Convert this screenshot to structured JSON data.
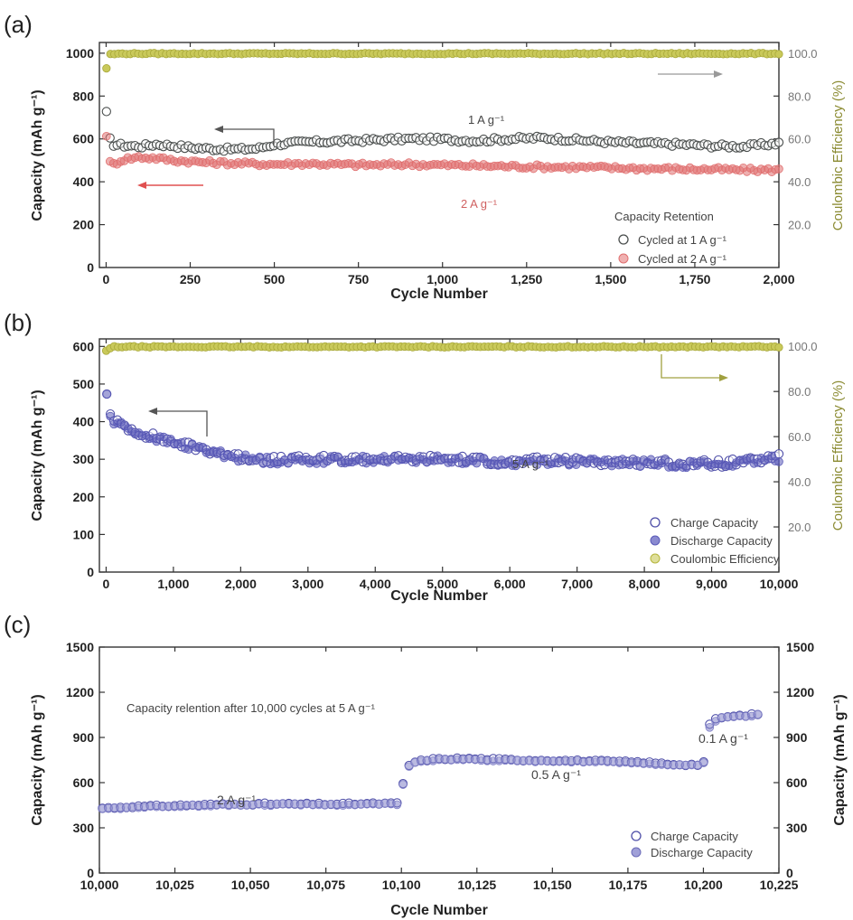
{
  "chart_data": [
    {
      "panel": "(a)",
      "type": "scatter",
      "xlabel": "Cycle Number",
      "ylabel": "Capacity (mAh g⁻¹)",
      "y2label": "Coulombic Efficiency (%)",
      "xlim": [
        -20,
        2000
      ],
      "ylim": [
        0,
        1050
      ],
      "y2lim": [
        0,
        105
      ],
      "x_ticks": [
        "0",
        "250",
        "500",
        "750",
        "1,000",
        "1,250",
        "1,500",
        "1,750",
        "2,000"
      ],
      "y_ticks": [
        "0",
        "200",
        "400",
        "600",
        "800",
        "1000"
      ],
      "y2_ticks": [
        "20.0",
        "40.0",
        "60.0",
        "80.0",
        "100.0"
      ],
      "legend": {
        "title": "Capacity Retention",
        "position": "lower-right"
      },
      "annotations": [
        {
          "text": "1 A g⁻¹",
          "near_series": "Cycled at 1 A g⁻¹"
        },
        {
          "text": "2 A g⁻¹",
          "near_series": "Cycled at 2 A g⁻¹"
        }
      ],
      "series": [
        {
          "name": "Cycled at 1 A g⁻¹",
          "color": "#4a4e4d",
          "axis": "left",
          "x": [
            1,
            5,
            10,
            20,
            50,
            100,
            150,
            200,
            250,
            300,
            350,
            400,
            450,
            500,
            600,
            700,
            800,
            900,
            1000,
            1100,
            1200,
            1300,
            1400,
            1500,
            1600,
            1700,
            1800,
            1900,
            2000
          ],
          "values": [
            720,
            640,
            600,
            575,
            570,
            565,
            575,
            568,
            560,
            555,
            552,
            552,
            555,
            575,
            585,
            590,
            595,
            600,
            598,
            592,
            600,
            605,
            595,
            585,
            580,
            575,
            568,
            565,
            580
          ]
        },
        {
          "name": "Cycled at 2 A g⁻¹",
          "color": "#e07070",
          "axis": "left",
          "x": [
            1,
            5,
            10,
            20,
            50,
            100,
            150,
            200,
            250,
            300,
            350,
            400,
            500,
            600,
            700,
            800,
            900,
            1000,
            1100,
            1200,
            1300,
            1400,
            1500,
            1600,
            1700,
            1800,
            1900,
            2000
          ],
          "values": [
            620,
            530,
            490,
            480,
            505,
            515,
            510,
            500,
            495,
            490,
            488,
            485,
            482,
            485,
            480,
            478,
            482,
            478,
            475,
            472,
            470,
            468,
            465,
            462,
            460,
            458,
            455,
            455
          ]
        },
        {
          "name": "Coulombic Efficiency",
          "color": "#b5b53c",
          "axis": "right",
          "x": [
            1,
            10,
            50,
            500,
            1000,
            1500,
            2000
          ],
          "values": [
            93,
            99.5,
            99.8,
            99.8,
            99.8,
            99.8,
            99.8
          ]
        }
      ]
    },
    {
      "panel": "(b)",
      "type": "scatter",
      "xlabel": "Cycle Number",
      "ylabel": "Capacity (mAh g⁻¹)",
      "y2label": "Coulombic Efficiency (%)",
      "xlim": [
        -100,
        10000
      ],
      "ylim": [
        0,
        620
      ],
      "y2lim": [
        0,
        103.3
      ],
      "x_ticks": [
        "0",
        "1,000",
        "2,000",
        "3,000",
        "4,000",
        "5,000",
        "6,000",
        "7,000",
        "8,000",
        "9,000",
        "10,000"
      ],
      "y_ticks": [
        "0",
        "100",
        "200",
        "300",
        "400",
        "500",
        "600"
      ],
      "y2_ticks": [
        "20.0",
        "40.0",
        "60.0",
        "80.0",
        "100.0"
      ],
      "legend": {
        "position": "lower-right"
      },
      "annotations": [
        {
          "text": "5 A g⁻¹"
        }
      ],
      "series": [
        {
          "name": "Charge Capacity",
          "color": "#4e4ea8",
          "axis": "left",
          "x": [
            10,
            50,
            100,
            200,
            500,
            1000,
            1500,
            2000,
            2500,
            3000,
            3500,
            4000,
            4500,
            5000,
            5500,
            6000,
            6500,
            7000,
            7500,
            8000,
            8500,
            9000,
            9500,
            10000
          ],
          "values": [
            480,
            420,
            400,
            395,
            370,
            345,
            325,
            305,
            298,
            300,
            300,
            302,
            300,
            302,
            298,
            292,
            298,
            295,
            293,
            292,
            290,
            288,
            292,
            305
          ]
        },
        {
          "name": "Discharge Capacity",
          "color": "#5a5ab8",
          "axis": "left",
          "x": [
            10,
            50,
            100,
            200,
            500,
            1000,
            1500,
            2000,
            2500,
            3000,
            3500,
            4000,
            4500,
            5000,
            5500,
            6000,
            6500,
            7000,
            7500,
            8000,
            8500,
            9000,
            9500,
            10000
          ],
          "values": [
            475,
            415,
            398,
            393,
            368,
            343,
            323,
            303,
            296,
            298,
            298,
            300,
            298,
            300,
            296,
            290,
            296,
            293,
            291,
            290,
            288,
            286,
            290,
            303
          ]
        },
        {
          "name": "Coulombic Efficiency",
          "color": "#b5b53c",
          "axis": "right",
          "x": [
            1,
            100,
            1000,
            5000,
            10000
          ],
          "values": [
            98,
            99.8,
            99.8,
            99.8,
            99.8
          ]
        }
      ]
    },
    {
      "panel": "(c)",
      "type": "scatter",
      "xlabel": "Cycle Number",
      "ylabel": "Capacity (mAh g⁻¹)",
      "y2label": "Capacity (mAh g⁻¹)",
      "xlim": [
        10000,
        10225
      ],
      "ylim": [
        0,
        1500
      ],
      "x_ticks": [
        "10,000",
        "10,025",
        "10,050",
        "10,075",
        "10,100",
        "10,125",
        "10,150",
        "10,175",
        "10,200",
        "10,225"
      ],
      "y_ticks": [
        "0",
        "300",
        "600",
        "900",
        "1200",
        "1500"
      ],
      "legend": {
        "position": "lower-right"
      },
      "annotations": [
        {
          "text": "Capacity relention after 10,000 cycles at 5 A g⁻¹"
        },
        {
          "text": "2 A g⁻¹"
        },
        {
          "text": "0.5 A g⁻¹"
        },
        {
          "text": "0.1 A g⁻¹"
        }
      ],
      "series": [
        {
          "name": "Charge Capacity",
          "color": "#4e4ea8",
          "x": [
            10001,
            10010,
            10020,
            10030,
            10040,
            10050,
            10060,
            10070,
            10080,
            10090,
            10100,
            10101,
            10105,
            10110,
            10120,
            10130,
            10140,
            10150,
            10160,
            10170,
            10180,
            10190,
            10200,
            10201,
            10203,
            10205,
            10210,
            10215,
            10218
          ],
          "values": [
            430,
            440,
            445,
            450,
            455,
            458,
            458,
            457,
            458,
            460,
            462,
            700,
            740,
            755,
            760,
            755,
            750,
            748,
            745,
            740,
            735,
            722,
            718,
            950,
            1010,
            1030,
            1040,
            1048,
            1055
          ]
        },
        {
          "name": "Discharge Capacity",
          "color": "#8282c8",
          "x": [
            10001,
            10010,
            10020,
            10030,
            10040,
            10050,
            10060,
            10070,
            10080,
            10090,
            10100,
            10101,
            10105,
            10110,
            10120,
            10130,
            10140,
            10150,
            10160,
            10170,
            10180,
            10190,
            10200,
            10201,
            10203,
            10205,
            10210,
            10215,
            10218
          ],
          "values": [
            425,
            436,
            441,
            446,
            451,
            454,
            454,
            453,
            454,
            456,
            458,
            690,
            735,
            750,
            755,
            750,
            745,
            743,
            740,
            735,
            730,
            717,
            712,
            920,
            1000,
            1025,
            1035,
            1043,
            1050
          ]
        }
      ]
    }
  ],
  "labels": {
    "a": {
      "panel": "(a)",
      "xlabel": "Cycle Number",
      "ylabel": "Capacity (mAh g⁻¹)",
      "y2label": "Coulombic Efficiency (%)",
      "rate1": "1 A g⁻¹",
      "rate2": "2 A g⁻¹",
      "legend_title": "Capacity Retention",
      "legend1": "Cycled at 1 A g⁻¹",
      "legend2": "Cycled at 2 A g⁻¹"
    },
    "b": {
      "panel": "(b)",
      "xlabel": "Cycle Number",
      "ylabel": "Capacity (mAh g⁻¹)",
      "y2label": "Coulombic Efficiency (%)",
      "rate": "5 A g⁻¹",
      "legend1": "Charge Capacity",
      "legend2": "Discharge Capacity",
      "legend3": "Coulombic Efficiency"
    },
    "c": {
      "panel": "(c)",
      "xlabel": "Cycle Number",
      "ylabel": "Capacity (mAh g⁻¹)",
      "y2label": "Capacity (mAh g⁻¹)",
      "note": "Capacity relention after 10,000 cycles at 5 A g⁻¹",
      "rate_2": "2 A g⁻¹",
      "rate_05": "0.5 A g⁻¹",
      "rate_01": "0.1 A g⁻¹",
      "legend1": "Charge Capacity",
      "legend2": "Discharge Capacity"
    }
  }
}
